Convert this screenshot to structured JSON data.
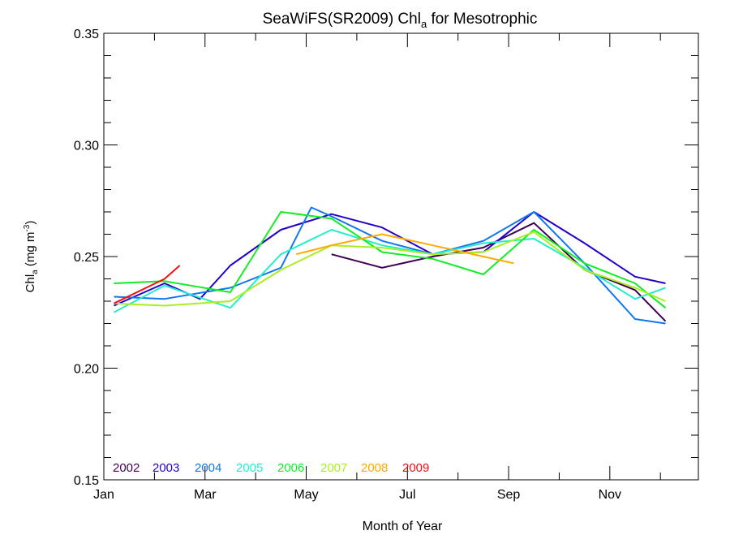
{
  "chart_data": {
    "type": "line",
    "title_main": "SeaWiFS(SR2009) Chl",
    "title_sub": "a",
    "title_rest": " for Mesotrophic",
    "ylabel_main": "Chl",
    "ylabel_sub": "a",
    "ylabel_rest": " (mg m",
    "ylabel_sup": "-3",
    "ylabel_close": ")",
    "xlabel": "Month of Year",
    "xlim": [
      1,
      12.75
    ],
    "ylim": [
      0.15,
      0.35
    ],
    "x_ticks": [
      {
        "value": 1,
        "label": "Jan"
      },
      {
        "value": 3,
        "label": "Mar"
      },
      {
        "value": 5,
        "label": "May"
      },
      {
        "value": 7,
        "label": "Jul"
      },
      {
        "value": 9,
        "label": "Sep"
      },
      {
        "value": 11,
        "label": "Nov"
      }
    ],
    "x_minor": [
      2,
      4,
      6,
      8,
      10,
      12
    ],
    "y_ticks": [
      {
        "value": 0.15,
        "label": "0.15"
      },
      {
        "value": 0.2,
        "label": "0.20"
      },
      {
        "value": 0.25,
        "label": "0.25"
      },
      {
        "value": 0.3,
        "label": "0.30"
      },
      {
        "value": 0.35,
        "label": "0.35"
      }
    ],
    "y_minor_step": 0.01,
    "legend_position": "bottom-left",
    "series": [
      {
        "name": "2002",
        "color": "#3f0052",
        "x": [
          5.5,
          6.5,
          7.5,
          8.5,
          9.5,
          10.5,
          11.5,
          12.1
        ],
        "y": [
          0.251,
          0.245,
          0.25,
          0.254,
          0.265,
          0.244,
          0.235,
          0.221
        ]
      },
      {
        "name": "2003",
        "color": "#2200cc",
        "x": [
          1.2,
          2.2,
          2.9,
          3.5,
          4.5,
          5.5,
          6.5,
          7.5,
          8.5,
          9.5,
          10.5,
          11.5,
          12.1
        ],
        "y": [
          0.228,
          0.238,
          0.231,
          0.246,
          0.262,
          0.269,
          0.263,
          0.251,
          0.252,
          0.27,
          0.256,
          0.241,
          0.238
        ]
      },
      {
        "name": "2004",
        "color": "#1177ee",
        "x": [
          1.2,
          2.2,
          3.5,
          4.5,
          5.1,
          5.5,
          6.5,
          7.5,
          8.5,
          9.5,
          10.5,
          11.5,
          12.1
        ],
        "y": [
          0.232,
          0.231,
          0.236,
          0.245,
          0.272,
          0.268,
          0.257,
          0.251,
          0.257,
          0.27,
          0.247,
          0.222,
          0.22
        ]
      },
      {
        "name": "2005",
        "color": "#22eecc",
        "x": [
          1.2,
          2.2,
          3.5,
          4.5,
          5.5,
          6.5,
          7.5,
          8.5,
          9.5,
          10.5,
          11.5,
          12.1
        ],
        "y": [
          0.225,
          0.237,
          0.227,
          0.251,
          0.262,
          0.255,
          0.251,
          0.256,
          0.258,
          0.245,
          0.231,
          0.236
        ]
      },
      {
        "name": "2006",
        "color": "#11ee22",
        "x": [
          1.2,
          2.2,
          3.5,
          4.5,
          5.5,
          6.5,
          7.5,
          8.5,
          9.5,
          10.5,
          11.5,
          12.1
        ],
        "y": [
          0.238,
          0.239,
          0.234,
          0.27,
          0.267,
          0.252,
          0.249,
          0.242,
          0.262,
          0.247,
          0.238,
          0.227
        ]
      },
      {
        "name": "2007",
        "color": "#aaee22",
        "x": [
          1.2,
          2.2,
          3.5,
          4.5,
          5.5,
          6.5,
          7.5,
          8.5,
          9.5,
          10.5,
          11.5,
          12.1
        ],
        "y": [
          0.229,
          0.228,
          0.23,
          0.244,
          0.255,
          0.254,
          0.251,
          0.252,
          0.261,
          0.244,
          0.236,
          0.23
        ]
      },
      {
        "name": "2008",
        "color": "#ffaa00",
        "x": [
          4.8,
          5.5,
          6.5,
          7.5,
          8.5,
          9.1
        ],
        "y": [
          0.251,
          0.255,
          0.26,
          0.255,
          0.25,
          0.247
        ]
      },
      {
        "name": "2009",
        "color": "#ee1111",
        "x": [
          1.2,
          2.2,
          2.5
        ],
        "y": [
          0.229,
          0.24,
          0.246
        ]
      }
    ]
  }
}
